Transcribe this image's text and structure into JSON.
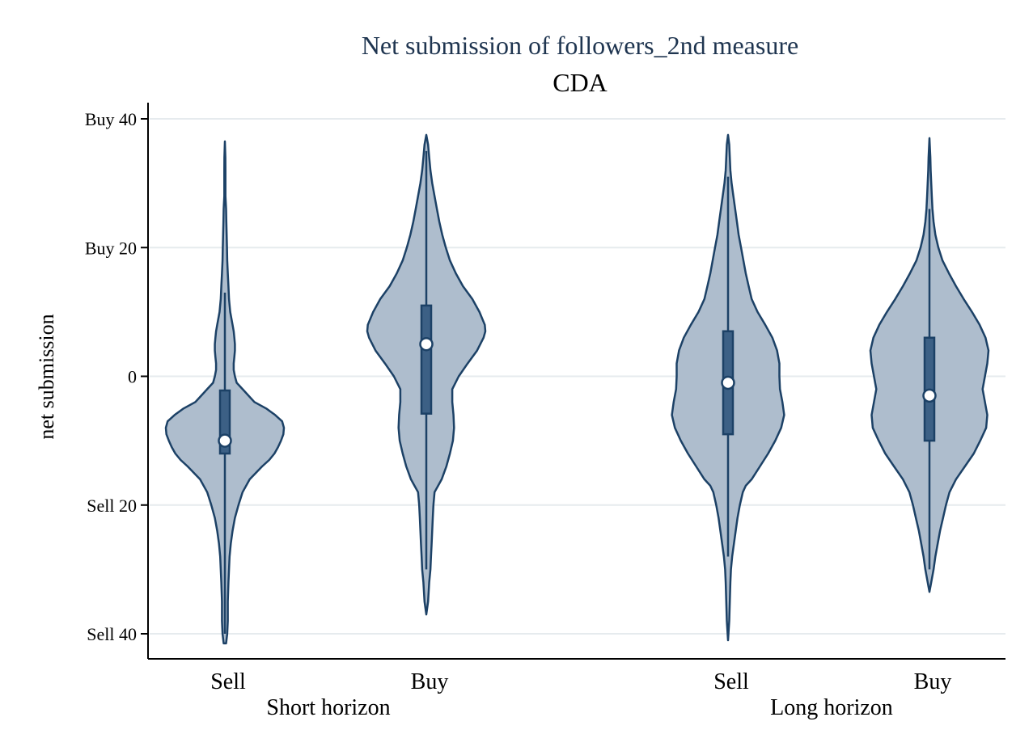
{
  "chart_data": {
    "type": "violin",
    "title": "Net submission of followers_2nd measure",
    "subtitle": "CDA",
    "ylabel": "net submission",
    "xlabel": "",
    "ylim": [
      -40,
      40
    ],
    "yticks": [
      {
        "value": 40,
        "label": "Buy 40"
      },
      {
        "value": 20,
        "label": "Buy 20"
      },
      {
        "value": 0,
        "label": "0"
      },
      {
        "value": -20,
        "label": "Sell 20"
      },
      {
        "value": -40,
        "label": "Sell 40"
      }
    ],
    "grid": true,
    "groups": [
      "Short horizon",
      "Long horizon"
    ],
    "colors": {
      "fill": "#aebdcd",
      "stroke": "#1c4166",
      "box": "#3c6085",
      "grid": "#e6ebee",
      "title": "#1f3550"
    },
    "violins": [
      {
        "label": "Sell",
        "group": "Short horizon",
        "median": -10,
        "q1": -12,
        "q3": -2.2,
        "whisker_low": -40,
        "whisker_high": 13,
        "min": -41.5,
        "max": 36.5,
        "density": [
          [
            -41.5,
            0.02
          ],
          [
            -40,
            0.04
          ],
          [
            -38,
            0.05
          ],
          [
            -35,
            0.05
          ],
          [
            -32,
            0.06
          ],
          [
            -30,
            0.07
          ],
          [
            -28,
            0.08
          ],
          [
            -26,
            0.1
          ],
          [
            -24,
            0.13
          ],
          [
            -22,
            0.17
          ],
          [
            -20,
            0.23
          ],
          [
            -18,
            0.3
          ],
          [
            -16,
            0.42
          ],
          [
            -14,
            0.63
          ],
          [
            -13,
            0.75
          ],
          [
            -12,
            0.84
          ],
          [
            -11,
            0.9
          ],
          [
            -10,
            0.95
          ],
          [
            -9,
            0.99
          ],
          [
            -8,
            1.0
          ],
          [
            -7,
            0.97
          ],
          [
            -6,
            0.85
          ],
          [
            -5,
            0.7
          ],
          [
            -4,
            0.5
          ],
          [
            -3,
            0.4
          ],
          [
            -2,
            0.3
          ],
          [
            -1,
            0.2
          ],
          [
            0,
            0.17
          ],
          [
            1,
            0.15
          ],
          [
            2,
            0.15
          ],
          [
            3,
            0.16
          ],
          [
            4,
            0.17
          ],
          [
            5,
            0.17
          ],
          [
            6,
            0.16
          ],
          [
            7,
            0.15
          ],
          [
            8,
            0.13
          ],
          [
            10,
            0.09
          ],
          [
            12,
            0.07
          ],
          [
            14,
            0.06
          ],
          [
            16,
            0.05
          ],
          [
            18,
            0.04
          ],
          [
            20,
            0.035
          ],
          [
            22,
            0.03
          ],
          [
            24,
            0.025
          ],
          [
            26,
            0.02
          ],
          [
            28,
            0.01
          ],
          [
            30,
            0.01
          ],
          [
            32,
            0.01
          ],
          [
            34,
            0.008
          ],
          [
            36.5,
            0.0
          ]
        ]
      },
      {
        "label": "Buy",
        "group": "Short horizon",
        "median": 5,
        "q1": -5.8,
        "q3": 11,
        "whisker_low": -30,
        "whisker_high": 35,
        "min": -37,
        "max": 37.5,
        "density": [
          [
            -37,
            0.0
          ],
          [
            -35,
            0.03
          ],
          [
            -32,
            0.05
          ],
          [
            -30,
            0.07
          ],
          [
            -28,
            0.08
          ],
          [
            -26,
            0.09
          ],
          [
            -24,
            0.1
          ],
          [
            -22,
            0.11
          ],
          [
            -20,
            0.12
          ],
          [
            -18,
            0.14
          ],
          [
            -17,
            0.2
          ],
          [
            -16,
            0.26
          ],
          [
            -15,
            0.3
          ],
          [
            -14,
            0.34
          ],
          [
            -12,
            0.4
          ],
          [
            -10,
            0.45
          ],
          [
            -8,
            0.47
          ],
          [
            -6,
            0.46
          ],
          [
            -4,
            0.44
          ],
          [
            -2,
            0.44
          ],
          [
            0,
            0.55
          ],
          [
            2,
            0.7
          ],
          [
            4,
            0.86
          ],
          [
            6,
            0.97
          ],
          [
            7,
            1.0
          ],
          [
            8,
            0.99
          ],
          [
            10,
            0.9
          ],
          [
            12,
            0.78
          ],
          [
            14,
            0.62
          ],
          [
            16,
            0.5
          ],
          [
            18,
            0.4
          ],
          [
            20,
            0.33
          ],
          [
            22,
            0.27
          ],
          [
            24,
            0.22
          ],
          [
            26,
            0.18
          ],
          [
            28,
            0.14
          ],
          [
            30,
            0.1
          ],
          [
            32,
            0.07
          ],
          [
            34,
            0.05
          ],
          [
            36,
            0.03
          ],
          [
            37.5,
            0.0
          ]
        ]
      },
      {
        "label": "Sell",
        "group": "Long horizon",
        "median": -1,
        "q1": -9,
        "q3": 7,
        "whisker_low": -28,
        "whisker_high": 31,
        "min": -41,
        "max": 37.5,
        "density": [
          [
            -41,
            0.0
          ],
          [
            -38,
            0.02
          ],
          [
            -35,
            0.03
          ],
          [
            -32,
            0.04
          ],
          [
            -30,
            0.05
          ],
          [
            -28,
            0.07
          ],
          [
            -26,
            0.1
          ],
          [
            -24,
            0.13
          ],
          [
            -22,
            0.16
          ],
          [
            -20,
            0.2
          ],
          [
            -18,
            0.25
          ],
          [
            -17,
            0.3
          ],
          [
            -16,
            0.4
          ],
          [
            -14,
            0.54
          ],
          [
            -12,
            0.68
          ],
          [
            -10,
            0.8
          ],
          [
            -8,
            0.9
          ],
          [
            -6,
            0.95
          ],
          [
            -4,
            0.92
          ],
          [
            -2,
            0.88
          ],
          [
            0,
            0.87
          ],
          [
            2,
            0.87
          ],
          [
            4,
            0.83
          ],
          [
            6,
            0.75
          ],
          [
            8,
            0.63
          ],
          [
            10,
            0.5
          ],
          [
            12,
            0.4
          ],
          [
            14,
            0.35
          ],
          [
            16,
            0.3
          ],
          [
            18,
            0.26
          ],
          [
            20,
            0.22
          ],
          [
            22,
            0.18
          ],
          [
            24,
            0.15
          ],
          [
            26,
            0.12
          ],
          [
            28,
            0.09
          ],
          [
            30,
            0.06
          ],
          [
            32,
            0.04
          ],
          [
            34,
            0.03
          ],
          [
            36,
            0.02
          ],
          [
            37.5,
            0.0
          ]
        ]
      },
      {
        "label": "Buy",
        "group": "Long horizon",
        "median": -3,
        "q1": -10,
        "q3": 6,
        "whisker_low": -30,
        "whisker_high": 26,
        "min": -33.5,
        "max": 37,
        "density": [
          [
            -33.5,
            0.0
          ],
          [
            -32,
            0.03
          ],
          [
            -30,
            0.07
          ],
          [
            -28,
            0.1
          ],
          [
            -26,
            0.14
          ],
          [
            -24,
            0.18
          ],
          [
            -22,
            0.23
          ],
          [
            -20,
            0.28
          ],
          [
            -18,
            0.34
          ],
          [
            -16,
            0.45
          ],
          [
            -14,
            0.6
          ],
          [
            -12,
            0.75
          ],
          [
            -10,
            0.86
          ],
          [
            -8,
            0.96
          ],
          [
            -6,
            0.98
          ],
          [
            -4,
            0.94
          ],
          [
            -2,
            0.9
          ],
          [
            0,
            0.94
          ],
          [
            2,
            0.98
          ],
          [
            4,
            1.0
          ],
          [
            6,
            0.95
          ],
          [
            8,
            0.85
          ],
          [
            10,
            0.72
          ],
          [
            12,
            0.58
          ],
          [
            14,
            0.45
          ],
          [
            16,
            0.33
          ],
          [
            18,
            0.22
          ],
          [
            20,
            0.15
          ],
          [
            22,
            0.1
          ],
          [
            24,
            0.07
          ],
          [
            26,
            0.05
          ],
          [
            28,
            0.04
          ],
          [
            30,
            0.03
          ],
          [
            32,
            0.02
          ],
          [
            34,
            0.015
          ],
          [
            37,
            0.0
          ]
        ]
      }
    ]
  }
}
